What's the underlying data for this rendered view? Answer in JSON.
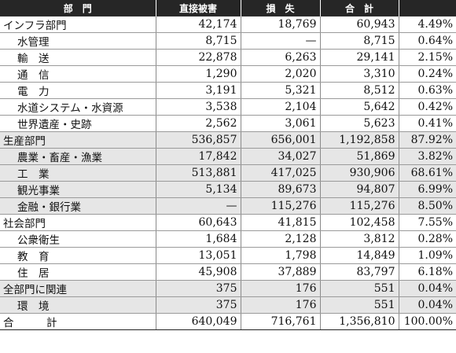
{
  "header": {
    "col0": "部　門",
    "col1": "直接被害",
    "col2": "損　失",
    "col3": "合　計",
    "col4": ""
  },
  "rows": [
    {
      "type": "cat",
      "shaded": false,
      "name": "インフラ部門",
      "direct": "42,174",
      "loss": "18,769",
      "total": "60,943",
      "pct": "4.49%"
    },
    {
      "type": "sub",
      "shaded": false,
      "name": "水管理",
      "direct": "8,715",
      "loss": "—",
      "total": "8,715",
      "pct": "0.64%"
    },
    {
      "type": "sub",
      "shaded": false,
      "name": "輸　送",
      "direct": "22,878",
      "loss": "6,263",
      "total": "29,141",
      "pct": "2.15%"
    },
    {
      "type": "sub",
      "shaded": false,
      "name": "通　信",
      "direct": "1,290",
      "loss": "2,020",
      "total": "3,310",
      "pct": "0.24%"
    },
    {
      "type": "sub",
      "shaded": false,
      "name": "電　力",
      "direct": "3,191",
      "loss": "5,321",
      "total": "8,512",
      "pct": "0.63%"
    },
    {
      "type": "sub",
      "shaded": false,
      "name": "水道システム・水資源",
      "direct": "3,538",
      "loss": "2,104",
      "total": "5,642",
      "pct": "0.42%"
    },
    {
      "type": "sub",
      "shaded": false,
      "name": "世界遺産・史跡",
      "direct": "2,562",
      "loss": "3,061",
      "total": "5,623",
      "pct": "0.41%"
    },
    {
      "type": "cat",
      "shaded": true,
      "name": "生産部門",
      "direct": "536,857",
      "loss": "656,001",
      "total": "1,192,858",
      "pct": "87.92%"
    },
    {
      "type": "sub",
      "shaded": true,
      "name": "農業・畜産・漁業",
      "direct": "17,842",
      "loss": "34,027",
      "total": "51,869",
      "pct": "3.82%"
    },
    {
      "type": "sub",
      "shaded": true,
      "name": "工　業",
      "direct": "513,881",
      "loss": "417,025",
      "total": "930,906",
      "pct": "68.61%"
    },
    {
      "type": "sub",
      "shaded": true,
      "name": "観光事業",
      "direct": "5,134",
      "loss": "89,673",
      "total": "94,807",
      "pct": "6.99%"
    },
    {
      "type": "sub",
      "shaded": true,
      "name": "金融・銀行業",
      "direct": "—",
      "loss": "115,276",
      "total": "115,276",
      "pct": "8.50%"
    },
    {
      "type": "cat",
      "shaded": false,
      "name": "社会部門",
      "direct": "60,643",
      "loss": "41,815",
      "total": "102,458",
      "pct": "7.55%"
    },
    {
      "type": "sub",
      "shaded": false,
      "name": "公衆衛生",
      "direct": "1,684",
      "loss": "2,128",
      "total": "3,812",
      "pct": "0.28%"
    },
    {
      "type": "sub",
      "shaded": false,
      "name": "教　育",
      "direct": "13,051",
      "loss": "1,798",
      "total": "14,849",
      "pct": "1.09%"
    },
    {
      "type": "sub",
      "shaded": false,
      "name": "住　居",
      "direct": "45,908",
      "loss": "37,889",
      "total": "83,797",
      "pct": "6.18%"
    },
    {
      "type": "cat",
      "shaded": true,
      "name": "全部門に関連",
      "direct": "375",
      "loss": "176",
      "total": "551",
      "pct": "0.04%"
    },
    {
      "type": "sub",
      "shaded": true,
      "name": "環　境",
      "direct": "375",
      "loss": "176",
      "total": "551",
      "pct": "0.04%"
    },
    {
      "type": "total",
      "shaded": false,
      "name": "合　計",
      "direct": "640,049",
      "loss": "716,761",
      "total": "1,356,810",
      "pct": "100.00%"
    }
  ]
}
